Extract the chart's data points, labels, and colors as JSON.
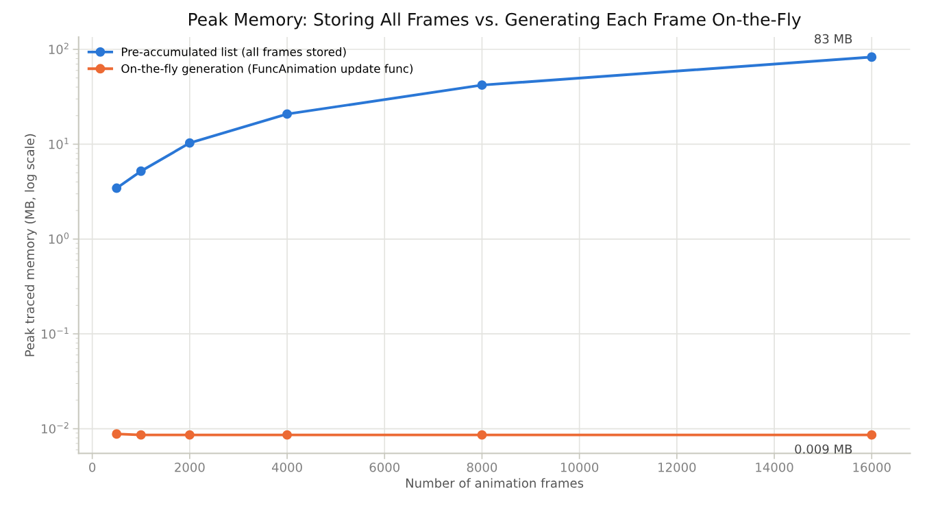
{
  "chart_data": {
    "type": "line",
    "title": "Peak Memory: Storing All Frames vs. Generating Each Frame On-the-Fly",
    "xlabel": "Number of animation frames",
    "ylabel": "Peak traced memory (MB, log scale)",
    "x": [
      500,
      1000,
      2000,
      4000,
      8000,
      16000
    ],
    "series": [
      {
        "name": "Pre-accumulated list (all frames stored)",
        "color": "#2a77d6",
        "values": [
          3.44,
          5.2,
          10.3,
          20.8,
          42,
          83
        ]
      },
      {
        "name": "On-the-fly generation (FuncAnimation update func)",
        "color": "#ec6a34",
        "values": [
          0.0088,
          0.0086,
          0.0086,
          0.0086,
          0.0086,
          0.0086
        ]
      }
    ],
    "annotations": [
      {
        "text": "83 MB",
        "x": 16000,
        "y": 83
      },
      {
        "text": "0.009 MB",
        "x": 16000,
        "y": 0.0086
      }
    ],
    "log": "y",
    "xlim": [
      -280,
      16790
    ],
    "ylim": [
      0.0055,
      135
    ],
    "xticks": [
      0,
      2000,
      4000,
      6000,
      8000,
      10000,
      12000,
      14000,
      16000
    ],
    "yticks": [
      {
        "value": 0.01,
        "label": "10$^{−2}$"
      },
      {
        "value": 0.1,
        "label": "10$^{−1}$"
      },
      {
        "value": 1,
        "label": "10$^{0}$"
      },
      {
        "value": 10,
        "label": "10$^{1}$"
      },
      {
        "value": 100,
        "label": "10$^{2}$"
      }
    ],
    "grid": true,
    "legend": "top left",
    "marker": "circle",
    "line_style": "solid"
  }
}
